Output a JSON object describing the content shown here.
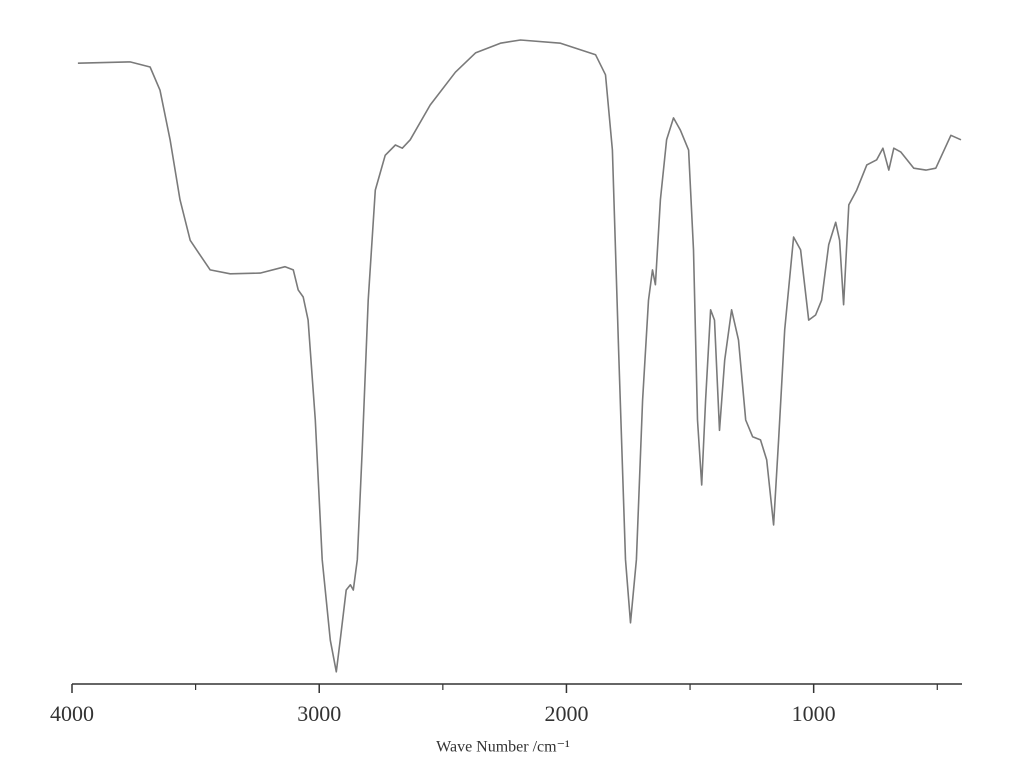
{
  "chart_data": {
    "type": "line",
    "xlabel": "Wave Number /cm⁻¹",
    "xlim": [
      4000,
      400
    ],
    "ylim": [
      0,
      100
    ],
    "xticks": [
      4000,
      3000,
      2000,
      1000
    ],
    "xminorticks": [
      3500,
      2500,
      1500,
      500
    ],
    "series": [
      {
        "color": "#7a7a7a",
        "x": [
          3976,
          3765,
          3684,
          3644,
          3603,
          3563,
          3522,
          3482,
          3441,
          3360,
          3239,
          3138,
          3105,
          3085,
          3065,
          3045,
          3016,
          2988,
          2955,
          2931,
          2915,
          2891,
          2874,
          2862,
          2846,
          2826,
          2802,
          2773,
          2733,
          2692,
          2664,
          2632,
          2551,
          2449,
          2368,
          2267,
          2186,
          2024,
          1882,
          1842,
          1814,
          1789,
          1761,
          1741,
          1717,
          1692,
          1668,
          1652,
          1640,
          1620,
          1595,
          1567,
          1539,
          1506,
          1486,
          1470,
          1453,
          1437,
          1417,
          1401,
          1381,
          1360,
          1332,
          1304,
          1275,
          1247,
          1215,
          1190,
          1162,
          1142,
          1117,
          1081,
          1053,
          1020,
          992,
          968,
          939,
          911,
          895,
          879,
          858,
          826,
          785,
          745,
          720,
          696,
          676,
          647,
          595,
          546,
          506,
          445,
          404
        ],
        "values": [
          96.4,
          96.6,
          95.8,
          92.2,
          84.5,
          75.2,
          68.9,
          66.6,
          64.3,
          63.7,
          63.8,
          64.8,
          64.3,
          61.2,
          60.1,
          56.5,
          41.0,
          19.3,
          6.8,
          1.9,
          6.8,
          14.6,
          15.4,
          14.6,
          19.3,
          36.3,
          59.6,
          76.7,
          82.1,
          83.7,
          83.2,
          84.5,
          89.9,
          95.0,
          98.0,
          99.5,
          100,
          99.5,
          97.7,
          94.6,
          82.9,
          51.9,
          19.3,
          9.5,
          19.3,
          44.1,
          59.6,
          64.3,
          62.0,
          75.2,
          84.5,
          87.9,
          86.0,
          82.9,
          67.4,
          41.0,
          30.9,
          44.1,
          58.1,
          56.5,
          39.4,
          50.3,
          58.1,
          53.4,
          41.0,
          38.4,
          37.9,
          34.8,
          24.7,
          37.9,
          55.0,
          69.4,
          67.4,
          56.5,
          57.3,
          59.6,
          68.2,
          71.7,
          68.9,
          58.9,
          74.4,
          76.7,
          80.6,
          81.4,
          83.2,
          79.8,
          83.2,
          82.6,
          80.1,
          79.8,
          80.1,
          85.2,
          84.5
        ]
      }
    ]
  }
}
